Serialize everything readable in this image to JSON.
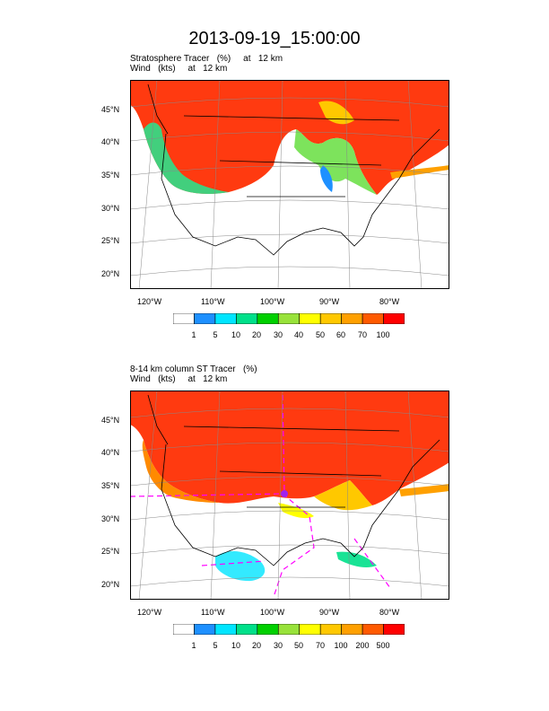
{
  "title": "2013-09-19_15:00:00",
  "panels": [
    {
      "line1": "Stratosphere Tracer   (%)     at   12 km",
      "line2": "Wind   (kts)     at   12 km",
      "lat_labels": [
        "45°N",
        "40°N",
        "35°N",
        "30°N",
        "25°N",
        "20°N"
      ],
      "lon_labels": [
        "120°W",
        "110°W",
        "100°W",
        "90°W",
        "80°W"
      ],
      "colorbar_labels": [
        "1",
        "5",
        "10",
        "20",
        "30",
        "40",
        "50",
        "60",
        "70",
        "100"
      ]
    },
    {
      "line1": "8-14 km column ST Tracer   (%)",
      "line2": "Wind   (kts)     at   12 km",
      "lat_labels": [
        "45°N",
        "40°N",
        "35°N",
        "30°N",
        "25°N",
        "20°N"
      ],
      "lon_labels": [
        "120°W",
        "110°W",
        "100°W",
        "90°W",
        "80°W"
      ],
      "colorbar_labels": [
        "1",
        "5",
        "10",
        "20",
        "30",
        "50",
        "70",
        "100",
        "200",
        "500"
      ]
    }
  ],
  "colorbar_colors": [
    "#ffffff",
    "#1e90ff",
    "#00e5ff",
    "#00e08a",
    "#00d000",
    "#98e23a",
    "#ffff00",
    "#ffc800",
    "#ffa000",
    "#ff5a00",
    "#ff0000"
  ]
}
